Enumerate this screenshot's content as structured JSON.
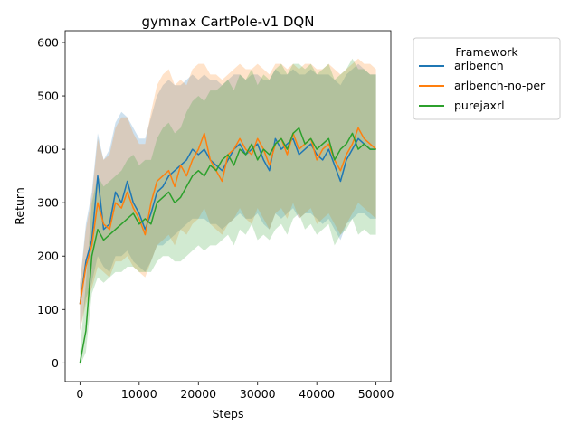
{
  "chart_data": {
    "type": "line",
    "title": "gymnax CartPole-v1 DQN",
    "xlabel": "Steps",
    "ylabel": "Return",
    "xlim": [
      -2500,
      52500
    ],
    "ylim": [
      -35,
      622
    ],
    "xticks": [
      0,
      10000,
      20000,
      30000,
      40000,
      50000
    ],
    "xtick_labels": [
      "0",
      "10000",
      "20000",
      "30000",
      "40000",
      "50000"
    ],
    "yticks": [
      0,
      100,
      200,
      300,
      400,
      500,
      600
    ],
    "ytick_labels": [
      "0",
      "100",
      "200",
      "300",
      "400",
      "500",
      "600"
    ],
    "grid": false,
    "legend": {
      "title": "Framework",
      "placement": "outside-right-top",
      "entries": [
        "arlbench",
        "arlbench-no-per",
        "purejaxrl"
      ]
    },
    "series": [
      {
        "name": "arlbench",
        "color": "#1f77b4",
        "x": [
          0,
          1000,
          2000,
          3000,
          4000,
          5000,
          6000,
          7000,
          8000,
          9000,
          10000,
          11000,
          12000,
          13000,
          14000,
          15000,
          16000,
          17000,
          18000,
          19000,
          20000,
          21000,
          22000,
          23000,
          24000,
          25000,
          26000,
          27000,
          28000,
          29000,
          30000,
          31000,
          32000,
          33000,
          34000,
          35000,
          36000,
          37000,
          38000,
          39000,
          40000,
          41000,
          42000,
          43000,
          44000,
          45000,
          46000,
          47000,
          48000,
          49000,
          50000
        ],
        "mean": [
          110,
          190,
          230,
          350,
          250,
          260,
          320,
          300,
          340,
          300,
          280,
          250,
          280,
          320,
          330,
          350,
          360,
          370,
          380,
          400,
          390,
          400,
          380,
          370,
          360,
          380,
          400,
          410,
          390,
          400,
          410,
          380,
          360,
          420,
          400,
          410,
          420,
          390,
          400,
          410,
          390,
          380,
          400,
          370,
          340,
          380,
          400,
          420,
          410,
          400,
          400
        ],
        "lower": [
          60,
          120,
          150,
          200,
          180,
          170,
          200,
          200,
          210,
          190,
          180,
          170,
          190,
          220,
          220,
          230,
          240,
          250,
          260,
          270,
          270,
          270,
          260,
          260,
          250,
          260,
          270,
          280,
          270,
          270,
          280,
          260,
          250,
          280,
          270,
          280,
          290,
          270,
          280,
          280,
          270,
          260,
          270,
          250,
          230,
          260,
          270,
          280,
          280,
          270,
          270
        ],
        "upper": [
          150,
          260,
          320,
          430,
          380,
          400,
          450,
          470,
          460,
          440,
          420,
          420,
          460,
          500,
          520,
          530,
          520,
          520,
          530,
          540,
          530,
          540,
          530,
          530,
          520,
          530,
          540,
          540,
          530,
          540,
          540,
          530,
          530,
          550,
          540,
          540,
          550,
          540,
          540,
          550,
          540,
          540,
          540,
          530,
          520,
          540,
          550,
          560,
          550,
          540,
          540
        ]
      },
      {
        "name": "arlbench-no-per",
        "color": "#ff7f0e",
        "x": [
          0,
          1000,
          2000,
          3000,
          4000,
          5000,
          6000,
          7000,
          8000,
          9000,
          10000,
          11000,
          12000,
          13000,
          14000,
          15000,
          16000,
          17000,
          18000,
          19000,
          20000,
          21000,
          22000,
          23000,
          24000,
          25000,
          26000,
          27000,
          28000,
          29000,
          30000,
          31000,
          32000,
          33000,
          34000,
          35000,
          36000,
          37000,
          38000,
          39000,
          40000,
          41000,
          42000,
          43000,
          44000,
          45000,
          46000,
          47000,
          48000,
          49000,
          50000
        ],
        "mean": [
          110,
          180,
          220,
          300,
          260,
          250,
          300,
          290,
          320,
          290,
          270,
          240,
          300,
          340,
          350,
          360,
          330,
          370,
          350,
          380,
          400,
          430,
          380,
          360,
          340,
          390,
          400,
          420,
          400,
          390,
          420,
          400,
          370,
          410,
          420,
          390,
          430,
          400,
          410,
          420,
          380,
          400,
          410,
          380,
          360,
          390,
          410,
          440,
          420,
          410,
          400
        ],
        "lower": [
          60,
          110,
          140,
          180,
          170,
          160,
          190,
          190,
          200,
          180,
          170,
          160,
          190,
          220,
          230,
          240,
          220,
          250,
          240,
          260,
          270,
          290,
          260,
          250,
          240,
          260,
          270,
          290,
          270,
          260,
          290,
          270,
          250,
          280,
          290,
          270,
          300,
          270,
          280,
          290,
          260,
          270,
          280,
          260,
          240,
          260,
          280,
          300,
          290,
          280,
          270
        ],
        "upper": [
          150,
          250,
          310,
          420,
          380,
          390,
          440,
          460,
          460,
          430,
          410,
          410,
          470,
          520,
          540,
          550,
          520,
          530,
          520,
          550,
          560,
          560,
          540,
          540,
          530,
          540,
          550,
          560,
          550,
          550,
          560,
          550,
          540,
          560,
          560,
          550,
          560,
          550,
          560,
          560,
          550,
          550,
          560,
          550,
          540,
          550,
          560,
          570,
          560,
          560,
          550
        ]
      },
      {
        "name": "purejaxrl",
        "color": "#2ca02c",
        "x": [
          0,
          1000,
          2000,
          3000,
          4000,
          5000,
          6000,
          7000,
          8000,
          9000,
          10000,
          11000,
          12000,
          13000,
          14000,
          15000,
          16000,
          17000,
          18000,
          19000,
          20000,
          21000,
          22000,
          23000,
          24000,
          25000,
          26000,
          27000,
          28000,
          29000,
          30000,
          31000,
          32000,
          33000,
          34000,
          35000,
          36000,
          37000,
          38000,
          39000,
          40000,
          41000,
          42000,
          43000,
          44000,
          45000,
          46000,
          47000,
          48000,
          49000,
          50000
        ],
        "mean": [
          0,
          60,
          200,
          250,
          230,
          240,
          250,
          260,
          270,
          280,
          260,
          270,
          260,
          300,
          310,
          320,
          300,
          310,
          330,
          350,
          360,
          350,
          370,
          360,
          380,
          390,
          370,
          400,
          390,
          410,
          380,
          400,
          390,
          410,
          420,
          400,
          430,
          440,
          410,
          420,
          400,
          410,
          420,
          380,
          400,
          410,
          430,
          400,
          410,
          400,
          400
        ],
        "lower": [
          -5,
          20,
          130,
          160,
          150,
          160,
          170,
          170,
          180,
          180,
          170,
          170,
          170,
          190,
          200,
          200,
          190,
          190,
          200,
          210,
          220,
          210,
          220,
          220,
          230,
          240,
          220,
          250,
          240,
          260,
          230,
          240,
          230,
          250,
          260,
          240,
          270,
          280,
          250,
          260,
          240,
          250,
          260,
          220,
          240,
          250,
          270,
          240,
          250,
          240,
          240
        ],
        "upper": [
          20,
          150,
          300,
          350,
          330,
          340,
          350,
          360,
          380,
          390,
          370,
          380,
          380,
          420,
          440,
          450,
          430,
          440,
          470,
          490,
          500,
          490,
          510,
          510,
          520,
          530,
          510,
          540,
          530,
          550,
          520,
          540,
          530,
          550,
          560,
          540,
          560,
          560,
          550,
          560,
          540,
          550,
          560,
          530,
          540,
          550,
          570,
          550,
          550,
          540,
          540
        ]
      }
    ]
  }
}
